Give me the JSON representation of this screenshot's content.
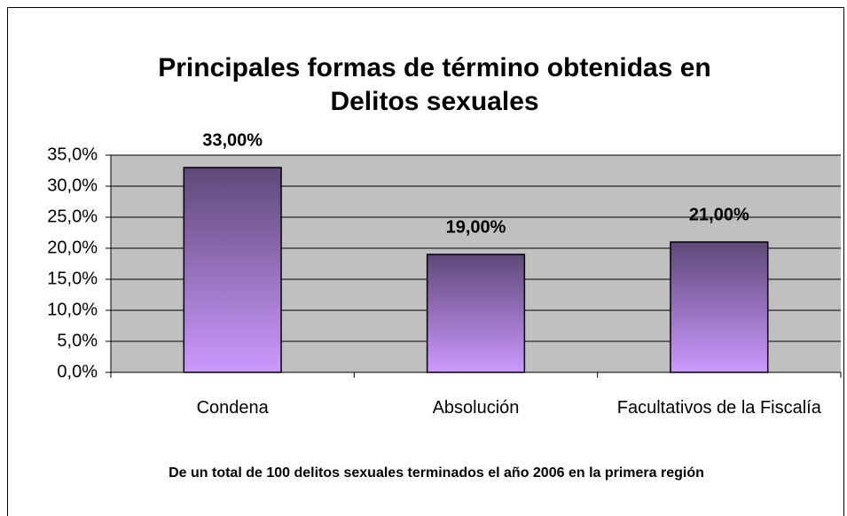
{
  "chart_data": {
    "type": "bar",
    "title": "Principales formas de término obtenidas en Delitos sexuales",
    "categories": [
      "Condena",
      "Absolución",
      "Facultativos de la Fiscalía"
    ],
    "values": [
      33,
      19,
      21
    ],
    "value_labels": [
      "33,00%",
      "19,00%",
      "21,00%"
    ],
    "color": "#cc99ff",
    "ylim": [
      0,
      35
    ],
    "yticks": [
      {
        "value": 0,
        "label": "0,0%"
      },
      {
        "value": 5,
        "label": "5,0%"
      },
      {
        "value": 10,
        "label": "10,0%"
      },
      {
        "value": 15,
        "label": "15,0%"
      },
      {
        "value": 20,
        "label": "20,0%"
      },
      {
        "value": 25,
        "label": "25,0%"
      },
      {
        "value": 30,
        "label": "30,0%"
      },
      {
        "value": 35,
        "label": "35,0%"
      }
    ],
    "grid": true,
    "annotation": "De un total de 100 delitos sexuales terminados el año 2006 en la primera región"
  }
}
